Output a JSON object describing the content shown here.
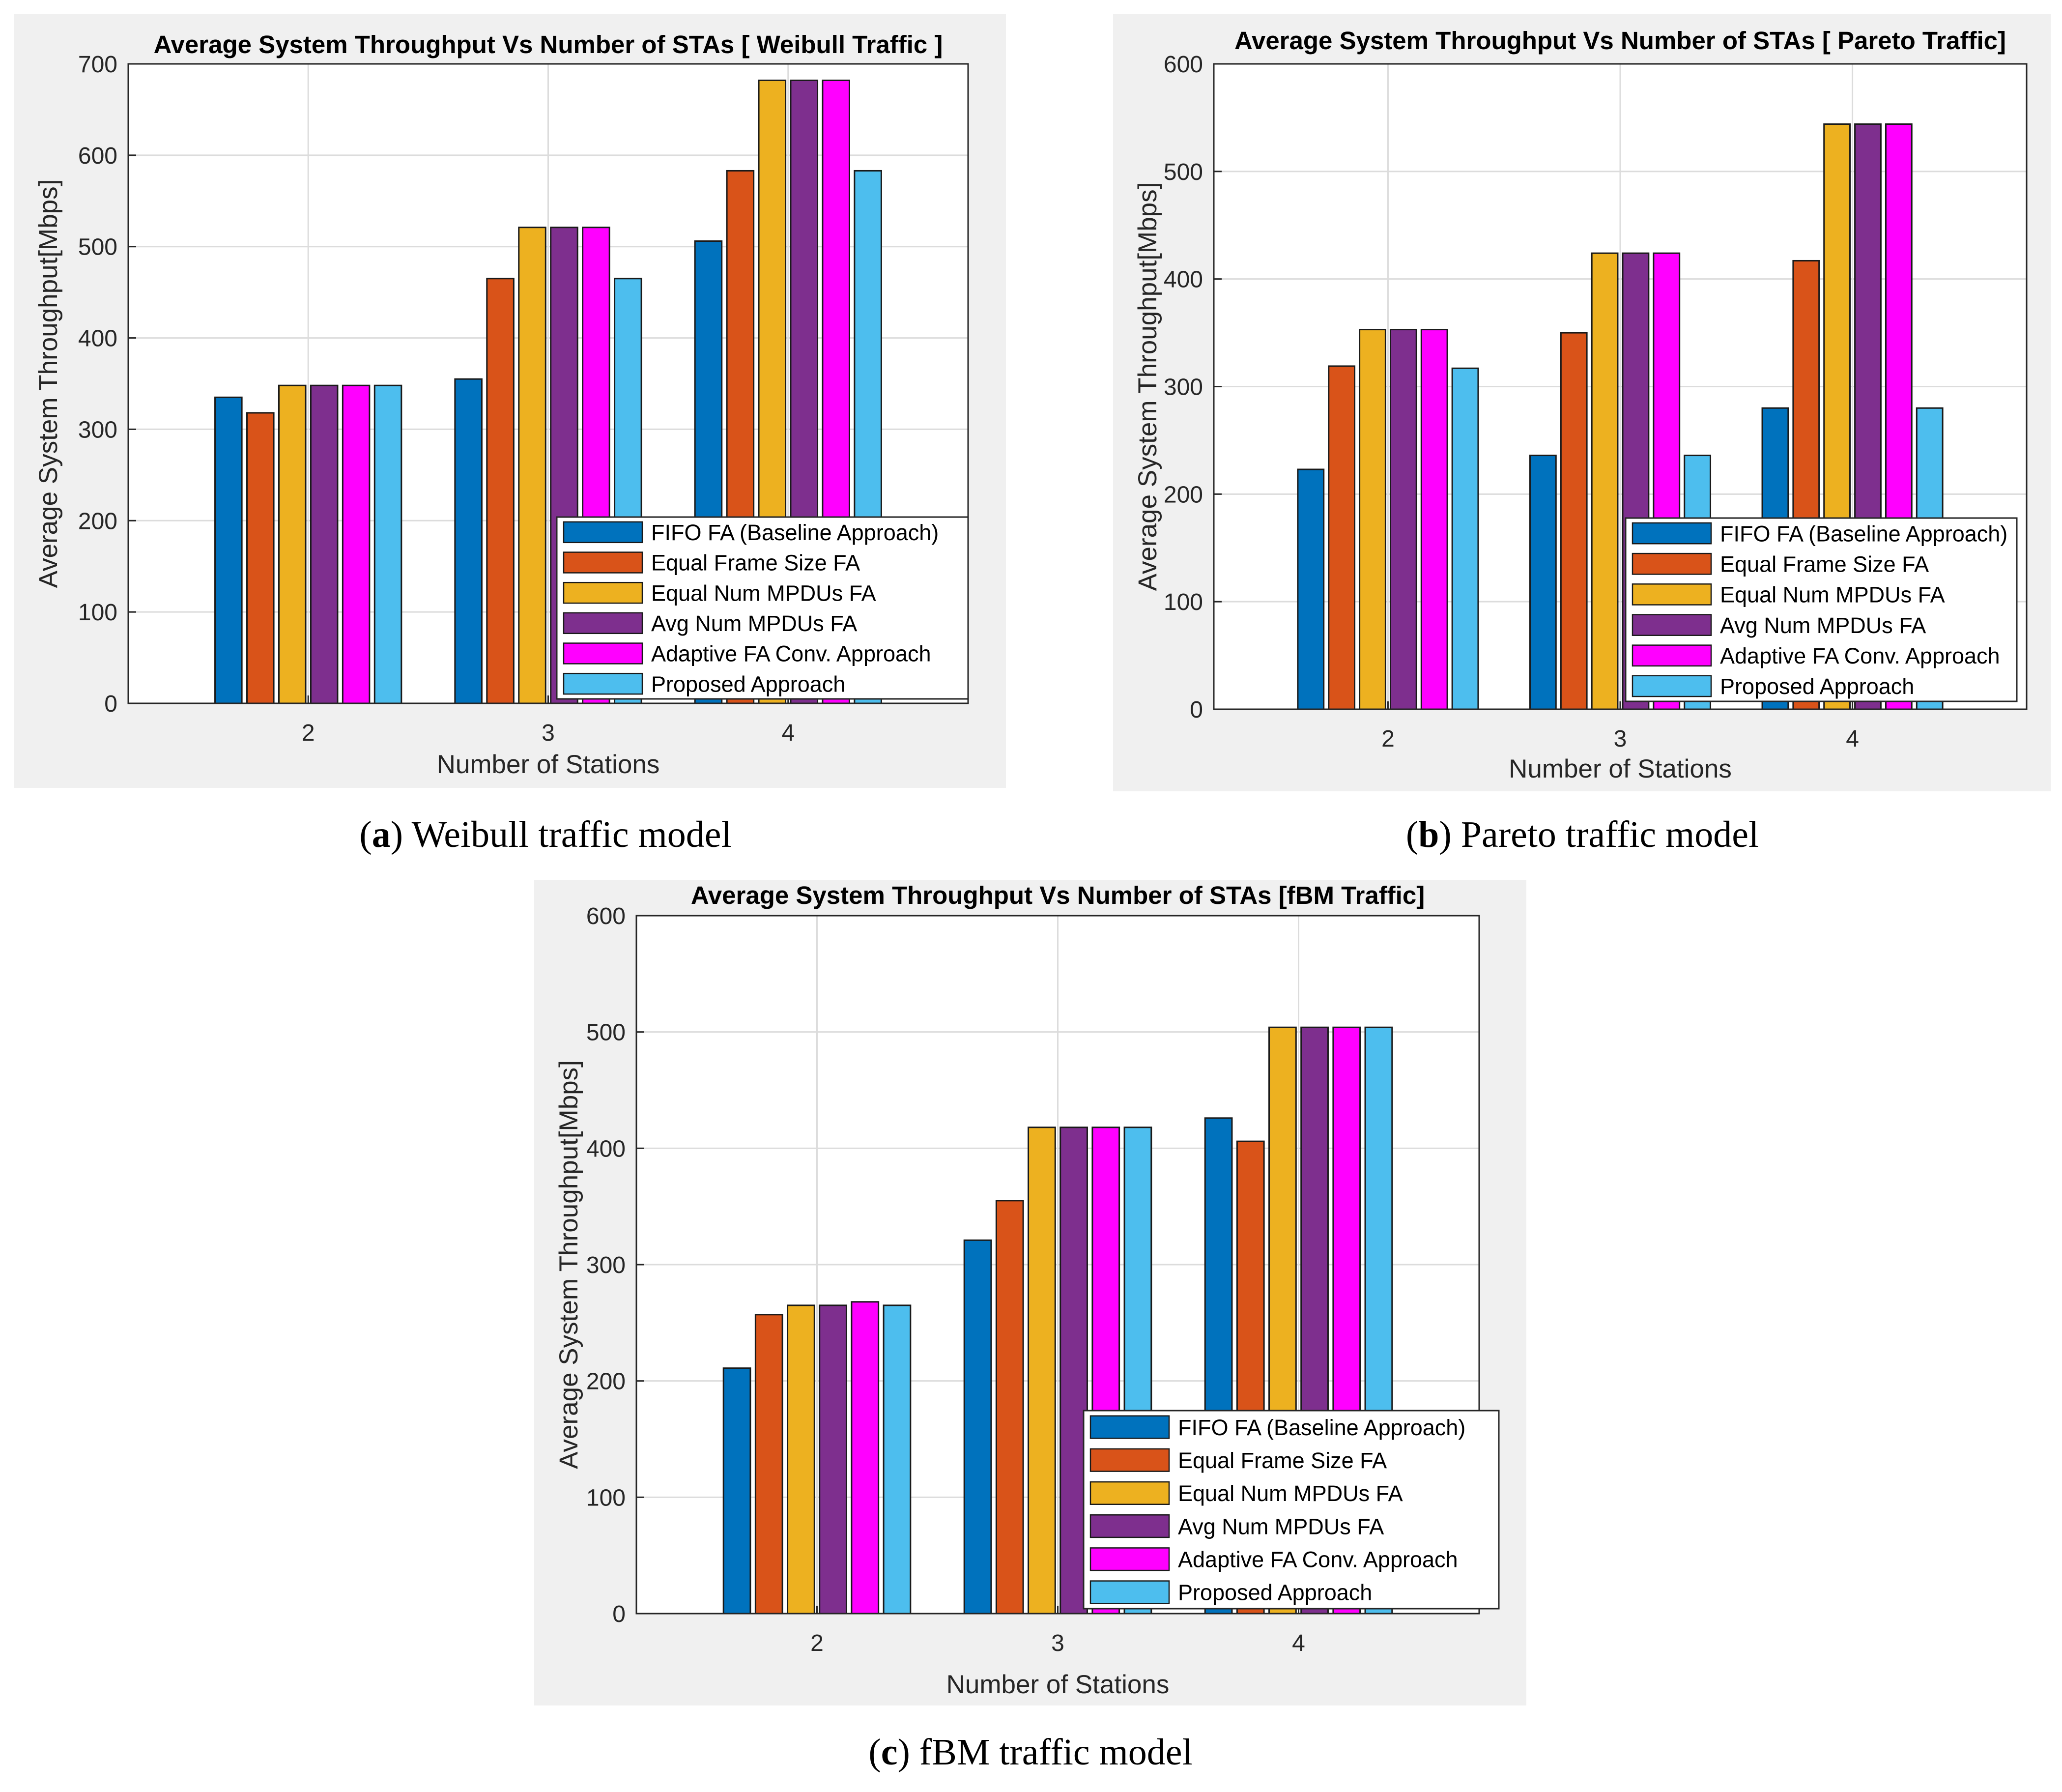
{
  "colors": {
    "series": [
      "#0072BD",
      "#D95319",
      "#EDB120",
      "#7E2F8E",
      "#FF00FF",
      "#4DBEEE"
    ],
    "figure_bg": "#F0F0F0",
    "axes_bg": "#FFFFFF",
    "grid": "#DCDCDC",
    "text": "#262626"
  },
  "legend_entries": [
    "FIFO FA (Baseline Approach)",
    "Equal Frame Size FA",
    "Equal Num MPDUs FA",
    "Avg Num MPDUs FA",
    "Adaptive FA Conv. Approach",
    "Proposed Approach"
  ],
  "chart_data": [
    {
      "id": "a",
      "type": "bar",
      "title": "Average System Throughput Vs Number of STAs [ Weibull Traffic ]",
      "xlabel": "Number of Stations",
      "ylabel": "Average System Throughput[Mbps]",
      "categories": [
        "2",
        "3",
        "4"
      ],
      "ylim": [
        0,
        700
      ],
      "yticks": [
        0,
        100,
        200,
        300,
        400,
        500,
        600,
        700
      ],
      "grid": true,
      "legend_position": "bottom-right",
      "series": [
        {
          "name": "FIFO FA (Baseline Approach)",
          "values": [
            335,
            355,
            506
          ]
        },
        {
          "name": "Equal Frame Size FA",
          "values": [
            318,
            465,
            583
          ]
        },
        {
          "name": "Equal Num MPDUs FA",
          "values": [
            348,
            521,
            682
          ]
        },
        {
          "name": "Avg Num MPDUs FA",
          "values": [
            348,
            521,
            682
          ]
        },
        {
          "name": "Adaptive FA Conv. Approach",
          "values": [
            348,
            521,
            682
          ]
        },
        {
          "name": "Proposed Approach",
          "values": [
            348,
            465,
            583
          ]
        }
      ],
      "caption": {
        "letter": "a",
        "text": " Weibull traffic model"
      }
    },
    {
      "id": "b",
      "type": "bar",
      "title": "Average System Throughput Vs Number of STAs [ Pareto Traffic]",
      "xlabel": "Number of Stations",
      "ylabel": "Average System Throughput[Mbps]",
      "categories": [
        "2",
        "3",
        "4"
      ],
      "ylim": [
        0,
        600
      ],
      "yticks": [
        0,
        100,
        200,
        300,
        400,
        500,
        600
      ],
      "grid": true,
      "legend_position": "bottom-right",
      "series": [
        {
          "name": "FIFO FA (Baseline Approach)",
          "values": [
            223,
            236,
            280
          ]
        },
        {
          "name": "Equal Frame Size FA",
          "values": [
            319,
            350,
            417
          ]
        },
        {
          "name": "Equal Num MPDUs FA",
          "values": [
            353,
            424,
            544
          ]
        },
        {
          "name": "Avg Num MPDUs FA",
          "values": [
            353,
            424,
            544
          ]
        },
        {
          "name": "Adaptive FA Conv. Approach",
          "values": [
            353,
            424,
            544
          ]
        },
        {
          "name": "Proposed Approach",
          "values": [
            317,
            236,
            280
          ]
        }
      ],
      "caption": {
        "letter": "b",
        "text": " Pareto traffic model"
      }
    },
    {
      "id": "c",
      "type": "bar",
      "title": "Average System Throughput Vs Number of STAs [fBM Traffic]",
      "xlabel": "Number of Stations",
      "ylabel": "Average System Throughput[Mbps]",
      "categories": [
        "2",
        "3",
        "4"
      ],
      "ylim": [
        0,
        600
      ],
      "yticks": [
        0,
        100,
        200,
        300,
        400,
        500,
        600
      ],
      "grid": true,
      "legend_position": "bottom-right",
      "series": [
        {
          "name": "FIFO FA (Baseline Approach)",
          "values": [
            211,
            321,
            426
          ]
        },
        {
          "name": "Equal Frame Size FA",
          "values": [
            257,
            355,
            406
          ]
        },
        {
          "name": "Equal Num MPDUs FA",
          "values": [
            265,
            418,
            504
          ]
        },
        {
          "name": "Avg Num MPDUs FA",
          "values": [
            265,
            418,
            504
          ]
        },
        {
          "name": "Adaptive FA Conv. Approach",
          "values": [
            268,
            418,
            504
          ]
        },
        {
          "name": "Proposed Approach",
          "values": [
            265,
            418,
            504
          ]
        }
      ],
      "caption": {
        "letter": "c",
        "text": " fBM traffic model"
      }
    }
  ]
}
